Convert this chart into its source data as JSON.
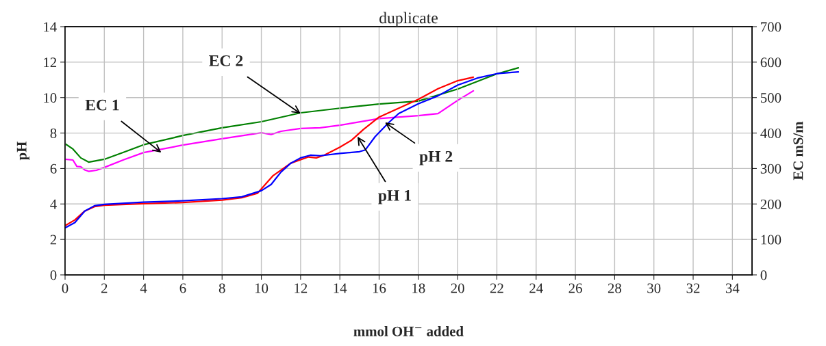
{
  "chart_data": {
    "type": "line",
    "title": "duplicate",
    "xlabel": "mmol OH$^{−}$ added",
    "ylabel": "pH",
    "y2label": "EC mS/m",
    "xlim": [
      0,
      35
    ],
    "xticks": [
      0,
      2,
      4,
      6,
      8,
      10,
      12,
      14,
      16,
      18,
      20,
      22,
      24,
      26,
      28,
      30,
      32,
      34
    ],
    "ylim": [
      0,
      14
    ],
    "yticks": [
      0,
      2,
      4,
      6,
      8,
      10,
      12,
      14
    ],
    "y2lim": [
      0,
      700
    ],
    "y2ticks": [
      0,
      100,
      200,
      300,
      400,
      500,
      600,
      700
    ],
    "grid": true,
    "legend": false,
    "marker": "none",
    "line_style": "solid",
    "series": [
      {
        "color": "#ff00ff",
        "axis": "y2",
        "x": [
          0,
          0.4,
          0.6,
          0.8,
          1.0,
          1.2,
          1.6,
          2,
          3,
          4,
          6,
          8,
          10,
          10.5,
          11,
          12,
          13,
          14,
          16,
          18,
          19,
          20,
          20.8
        ],
        "values": [
          326,
          324,
          306,
          305,
          296,
          292,
          295,
          303,
          325,
          345,
          366,
          384,
          401,
          396,
          405,
          413,
          415,
          422,
          441,
          449,
          455,
          492,
          519
        ]
      },
      {
        "color": "#008000",
        "axis": "y2",
        "x": [
          0,
          0.4,
          0.8,
          1.2,
          2,
          3,
          4,
          6,
          8,
          10,
          12,
          14,
          16,
          18,
          20,
          22,
          23.1
        ],
        "values": [
          370,
          355,
          330,
          318,
          326,
          346,
          367,
          393,
          415,
          432,
          457,
          470,
          482,
          490,
          524,
          567,
          584
        ]
      },
      {
        "color": "#ff0000",
        "x": [
          0,
          0.5,
          1,
          1.5,
          2,
          4,
          6,
          8,
          9,
          9.8,
          10.2,
          10.6,
          11.5,
          12.4,
          12.8,
          13.2,
          14,
          14.6,
          15.2,
          16,
          17,
          18,
          19,
          20,
          20.8
        ],
        "values": [
          2.78,
          3.1,
          3.6,
          3.85,
          3.93,
          4.02,
          4.08,
          4.22,
          4.35,
          4.6,
          5.1,
          5.6,
          6.3,
          6.65,
          6.6,
          6.75,
          7.2,
          7.6,
          8.2,
          8.9,
          9.4,
          9.9,
          10.5,
          10.95,
          11.15
        ]
      },
      {
        "color": "#0000ff",
        "x": [
          0,
          0.5,
          1,
          1.5,
          2,
          4,
          6,
          8,
          9,
          10,
          10.5,
          11,
          11.5,
          12,
          12.5,
          13,
          14,
          15,
          15.3,
          15.8,
          16.5,
          17,
          18,
          19,
          20,
          21,
          22,
          23.1
        ],
        "values": [
          2.65,
          2.95,
          3.6,
          3.9,
          3.98,
          4.1,
          4.18,
          4.3,
          4.4,
          4.75,
          5.1,
          5.8,
          6.3,
          6.6,
          6.75,
          6.72,
          6.85,
          6.95,
          7.05,
          7.8,
          8.6,
          9.1,
          9.65,
          10.1,
          10.7,
          11.1,
          11.35,
          11.45
        ]
      }
    ],
    "annotations": [
      {
        "text": "EC 1",
        "x": 4.9,
        "y": 6.9
      },
      {
        "text": "EC 2",
        "x": 12,
        "y": 9.1
      },
      {
        "text": "pH 1",
        "x": 14.9,
        "y": 7.8
      },
      {
        "text": "pH 2",
        "x": 16.3,
        "y": 8.6
      }
    ]
  }
}
